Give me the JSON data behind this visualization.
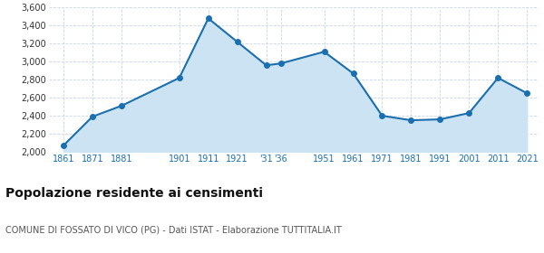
{
  "years": [
    1861,
    1871,
    1881,
    1901,
    1911,
    1921,
    1931,
    1936,
    1951,
    1961,
    1971,
    1981,
    1991,
    2001,
    2011,
    2021
  ],
  "population": [
    2070,
    2390,
    2510,
    2820,
    3480,
    3220,
    2960,
    2980,
    3110,
    2870,
    2400,
    2350,
    2360,
    2430,
    2820,
    2650
  ],
  "line_color": "#1a6faf",
  "fill_color": "#cce3f3",
  "marker_color": "#1a6faf",
  "bg_color": "#ffffff",
  "grid_color": "#c8d8e8",
  "title": "Popolazione residente ai censimenti",
  "subtitle": "COMUNE DI FOSSATO DI VICO (PG) - Dati ISTAT - Elaborazione TUTTITALIA.IT",
  "ylim": [
    2000,
    3600
  ],
  "yticks": [
    2000,
    2200,
    2400,
    2600,
    2800,
    3000,
    3200,
    3400,
    3600
  ],
  "ytick_labels": [
    "2,000",
    "2,200",
    "2,400",
    "2,600",
    "2,800",
    "3,000",
    "3,200",
    "3,400",
    "3,600"
  ],
  "x_tick_positions": [
    1861,
    1871,
    1881,
    1901,
    1911,
    1921,
    1931,
    1936,
    1951,
    1961,
    1971,
    1981,
    1991,
    2001,
    2011,
    2021
  ],
  "x_tick_labels": [
    "1861",
    "1871",
    "1881",
    "1901",
    "1911",
    "1921",
    "'31",
    "'36",
    "1951",
    "1961",
    "1971",
    "1981",
    "1991",
    "2001",
    "2011",
    "2021"
  ],
  "title_fontsize": 10,
  "subtitle_fontsize": 7,
  "tick_fontsize": 7,
  "tick_color": "#1a6faf",
  "xlim_left": 1856,
  "xlim_right": 2025
}
